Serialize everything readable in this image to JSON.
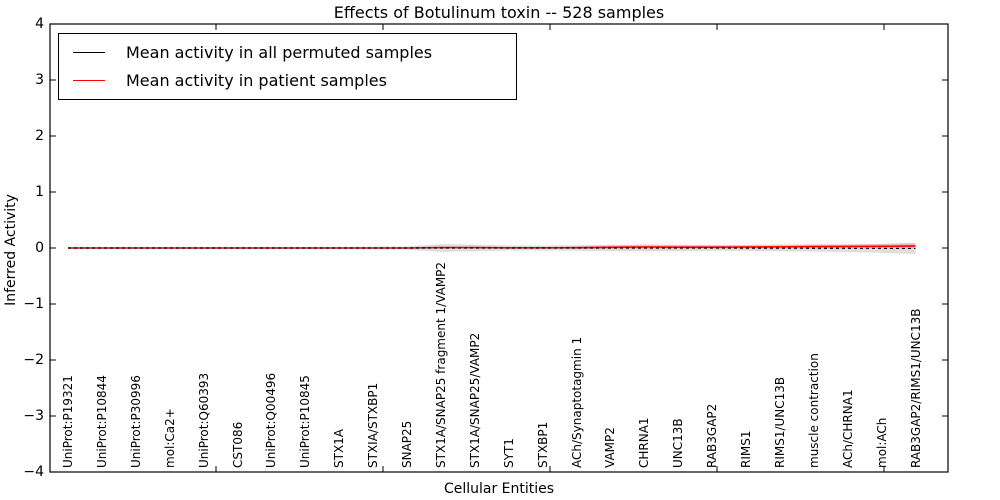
{
  "figure": {
    "title": "Effects of Botulinum toxin -- 528 samples"
  },
  "axes": {
    "ylabel": "Inferred Activity",
    "xlabel": "Cellular Entities",
    "ytick_labels": [
      "4",
      "3",
      "2",
      "1",
      "0",
      "−1",
      "−2",
      "−3",
      "−4"
    ]
  },
  "legend": {
    "items": [
      {
        "label": "Mean activity in all permuted samples",
        "color": "#000000"
      },
      {
        "label": "Mean activity in patient samples",
        "color": "#ff0000"
      }
    ]
  },
  "chart_data": {
    "type": "line",
    "title": "Effects of Botulinum toxin -- 528 samples",
    "xlabel": "Cellular Entities",
    "ylabel": "Inferred Activity",
    "ylim": [
      -4,
      4
    ],
    "yticks": [
      4,
      3,
      2,
      1,
      0,
      -1,
      -2,
      -3,
      -4
    ],
    "grid": false,
    "legend_position": "upper left",
    "categories": [
      "UniProt:P19321",
      "UniProt:P10844",
      "UniProt:P30996",
      "mol:Ca2+",
      "UniProt:Q60393",
      "CST086",
      "UniProt:Q00496",
      "UniProt:P10845",
      "STX1A",
      "STXIA/STXBP1",
      "SNAP25",
      "STX1A/SNAP25 fragment 1/VAMP2",
      "STX1A/SNAP25/VAMP2",
      "SYT1",
      "STXBP1",
      "ACh/Synaptotagmin 1",
      "VAMP2",
      "CHRNA1",
      "UNC13B",
      "RAB3GAP2",
      "RIMS1",
      "RIMS1/UNC13B",
      "muscle contraction",
      "ACh/CHRNA1",
      "mol:ACh",
      "RAB3GAP2/RIMS1/UNC13B"
    ],
    "series": [
      {
        "name": "Mean activity in all permuted samples",
        "color": "#000000",
        "style": "dashed",
        "values": [
          0,
          0,
          0,
          0,
          0,
          0,
          0,
          0,
          0,
          0,
          0,
          0,
          0,
          0,
          0,
          0,
          0,
          0,
          0,
          0,
          -0.002,
          -0.003,
          -0.004,
          -0.005,
          -0.006,
          -0.008
        ]
      },
      {
        "name": "Mean activity in patient samples",
        "color": "#ff0000",
        "style": "solid",
        "values": [
          0,
          0,
          0,
          0,
          0,
          0,
          0,
          0,
          0,
          0,
          0,
          0.008,
          0.008,
          0.003,
          0.003,
          0.005,
          0.012,
          0.018,
          0.015,
          0.015,
          0.018,
          0.02,
          0.025,
          0.028,
          0.03,
          0.036
        ]
      }
    ],
    "bands": [
      {
        "name": "permuted-samples-spread-band",
        "color": "#d8d8d8",
        "opacity": 0.85,
        "center_series": 0,
        "half_widths": [
          0.02,
          0.02,
          0.02,
          0.02,
          0.02,
          0.02,
          0.02,
          0.02,
          0.02,
          0.025,
          0.03,
          0.07,
          0.06,
          0.045,
          0.045,
          0.05,
          0.055,
          0.06,
          0.055,
          0.05,
          0.05,
          0.055,
          0.06,
          0.065,
          0.08,
          0.1
        ]
      },
      {
        "name": "patient-samples-spread-band",
        "color": "#ff6666",
        "opacity": 0.25,
        "center_series": 1,
        "half_widths": [
          0,
          0,
          0,
          0,
          0,
          0,
          0,
          0,
          0,
          0,
          0,
          0,
          0,
          0,
          0,
          0.02,
          0.035,
          0.045,
          0.04,
          0.038,
          0.04,
          0.045,
          0.042,
          0.04,
          0.045,
          0.05
        ]
      }
    ]
  }
}
